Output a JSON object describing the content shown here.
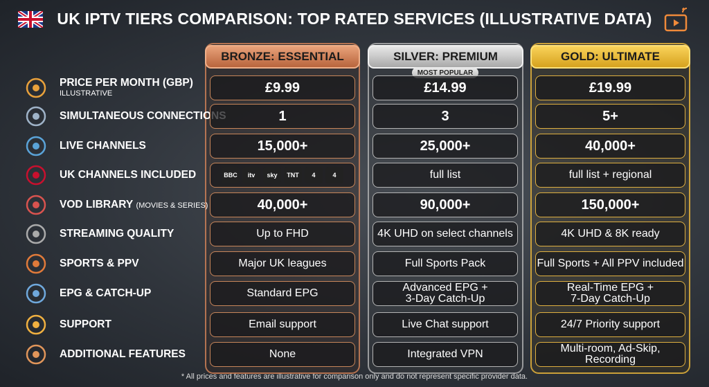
{
  "header": {
    "title": "UK IPTV TIERS COMPARISON: TOP RATED SERVICES (ILLUSTRATIVE DATA)"
  },
  "columns": [
    {
      "name": "BRONZE: ESSENTIAL"
    },
    {
      "name": "SILVER: PREMIUM",
      "badge": "MOST POPULAR"
    },
    {
      "name": "GOLD: ULTIMATE"
    }
  ],
  "rows": [
    {
      "label": "PRICE PER MONTH (GBP)",
      "note": "ILLUSTRATIVE",
      "values": [
        "£9.99",
        "£14.99",
        "£19.99"
      ]
    },
    {
      "label": "SIMULTANEOUS CONNECTIONS",
      "values": [
        "1",
        "3",
        "5+"
      ]
    },
    {
      "label": "LIVE CHANNELS",
      "values": [
        "15,000+",
        "25,000+",
        "40,000+"
      ]
    },
    {
      "label": "UK CHANNELS INCLUDED",
      "values": [
        [
          "BBC",
          "itv",
          "sky",
          "TNT",
          "4",
          "4"
        ],
        "full list",
        "full list + regional"
      ]
    },
    {
      "label": "VOD LIBRARY",
      "note": "(MOVIES & SERIES)",
      "values": [
        "40,000+",
        "90,000+",
        "150,000+"
      ]
    },
    {
      "label": "STREAMING QUALITY",
      "values": [
        "Up to FHD",
        "4K UHD on select channels",
        "4K UHD & 8K ready"
      ]
    },
    {
      "label": "SPORTS & PPV",
      "values": [
        "Major UK leagues",
        "Full Sports Pack",
        "Full Sports + All PPV included"
      ]
    },
    {
      "label": "EPG & CATCH-UP",
      "values": [
        "Standard EPG",
        "Advanced EPG +\n3-Day Catch-Up",
        "Real-Time EPG +\n7-Day Catch-Up"
      ]
    },
    {
      "label": "SUPPORT",
      "values": [
        "Email support",
        "Live Chat support",
        "24/7 Priority support"
      ]
    },
    {
      "label": "ADDITIONAL FEATURES",
      "values": [
        "None",
        "Integrated VPN",
        "Multi-room, Ad-Skip, Recording"
      ]
    }
  ],
  "footnote": "* All prices and features are illustrative for comparison only and do not represent specific provider data."
}
